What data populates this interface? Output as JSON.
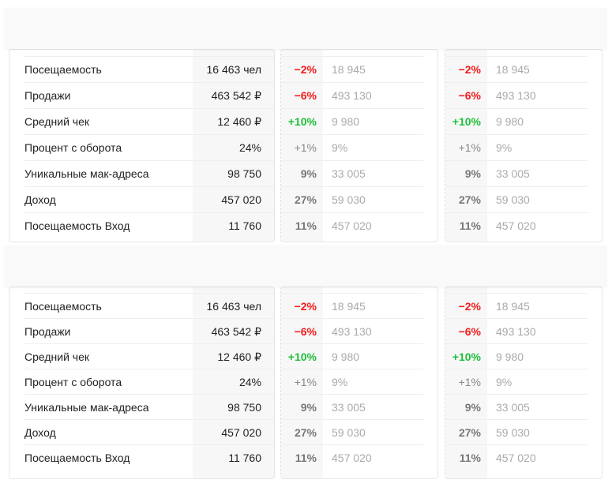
{
  "colors": {
    "negative": "#f21b1b",
    "positive": "#1fbf3a",
    "neutral": "#777777"
  },
  "sections": [
    {
      "rows": [
        {
          "label": "Посещаемость",
          "value": "16 463 чел",
          "c1": {
            "pct": "−2%",
            "cmp": "18 945",
            "trend": "neg"
          },
          "c2": {
            "pct": "−2%",
            "cmp": "18 945",
            "trend": "neg"
          }
        },
        {
          "label": "Продажи",
          "value": "463 542 ₽",
          "c1": {
            "pct": "−6%",
            "cmp": "493 130",
            "trend": "neg"
          },
          "c2": {
            "pct": "−6%",
            "cmp": "493 130",
            "trend": "neg"
          }
        },
        {
          "label": "Средний чек",
          "value": "12 460 ₽",
          "c1": {
            "pct": "+10%",
            "cmp": "9 980",
            "trend": "pos"
          },
          "c2": {
            "pct": "+10%",
            "cmp": "9 980",
            "trend": "pos"
          }
        },
        {
          "label": "Процент с оборота",
          "value": "24%",
          "c1": {
            "pct": "+1%",
            "cmp": "9%",
            "trend": "neutral-light"
          },
          "c2": {
            "pct": "+1%",
            "cmp": "9%",
            "trend": "neutral-light"
          }
        },
        {
          "label": "Уникальные мак-адреса",
          "value": "98 750",
          "c1": {
            "pct": "9%",
            "cmp": "33 005",
            "trend": "neutral"
          },
          "c2": {
            "pct": "9%",
            "cmp": "33 005",
            "trend": "neutral"
          }
        },
        {
          "label": "Доход",
          "value": "457 020",
          "c1": {
            "pct": "27%",
            "cmp": "59 030",
            "trend": "neutral"
          },
          "c2": {
            "pct": "27%",
            "cmp": "59 030",
            "trend": "neutral"
          }
        },
        {
          "label": "Посещаемость Вход",
          "value": "11 760",
          "c1": {
            "pct": "11%",
            "cmp": "457 020",
            "trend": "neutral"
          },
          "c2": {
            "pct": "11%",
            "cmp": "457 020",
            "trend": "neutral"
          }
        }
      ]
    },
    {
      "rows": [
        {
          "label": "Посещаемость",
          "value": "16 463 чел",
          "c1": {
            "pct": "−2%",
            "cmp": "18 945",
            "trend": "neg"
          },
          "c2": {
            "pct": "−2%",
            "cmp": "18 945",
            "trend": "neg"
          }
        },
        {
          "label": "Продажи",
          "value": "463 542 ₽",
          "c1": {
            "pct": "−6%",
            "cmp": "493 130",
            "trend": "neg"
          },
          "c2": {
            "pct": "−6%",
            "cmp": "493 130",
            "trend": "neg"
          }
        },
        {
          "label": "Средний чек",
          "value": "12 460 ₽",
          "c1": {
            "pct": "+10%",
            "cmp": "9 980",
            "trend": "pos"
          },
          "c2": {
            "pct": "+10%",
            "cmp": "9 980",
            "trend": "pos"
          }
        },
        {
          "label": "Процент с оборота",
          "value": "24%",
          "c1": {
            "pct": "+1%",
            "cmp": "9%",
            "trend": "neutral-light"
          },
          "c2": {
            "pct": "+1%",
            "cmp": "9%",
            "trend": "neutral-light"
          }
        },
        {
          "label": "Уникальные мак-адреса",
          "value": "98 750",
          "c1": {
            "pct": "9%",
            "cmp": "33 005",
            "trend": "neutral"
          },
          "c2": {
            "pct": "9%",
            "cmp": "33 005",
            "trend": "neutral"
          }
        },
        {
          "label": "Доход",
          "value": "457 020",
          "c1": {
            "pct": "27%",
            "cmp": "59 030",
            "trend": "neutral"
          },
          "c2": {
            "pct": "27%",
            "cmp": "59 030",
            "trend": "neutral"
          }
        },
        {
          "label": "Посещаемость Вход",
          "value": "11 760",
          "c1": {
            "pct": "11%",
            "cmp": "457 020",
            "trend": "neutral"
          },
          "c2": {
            "pct": "11%",
            "cmp": "457 020",
            "trend": "neutral"
          }
        }
      ]
    }
  ]
}
